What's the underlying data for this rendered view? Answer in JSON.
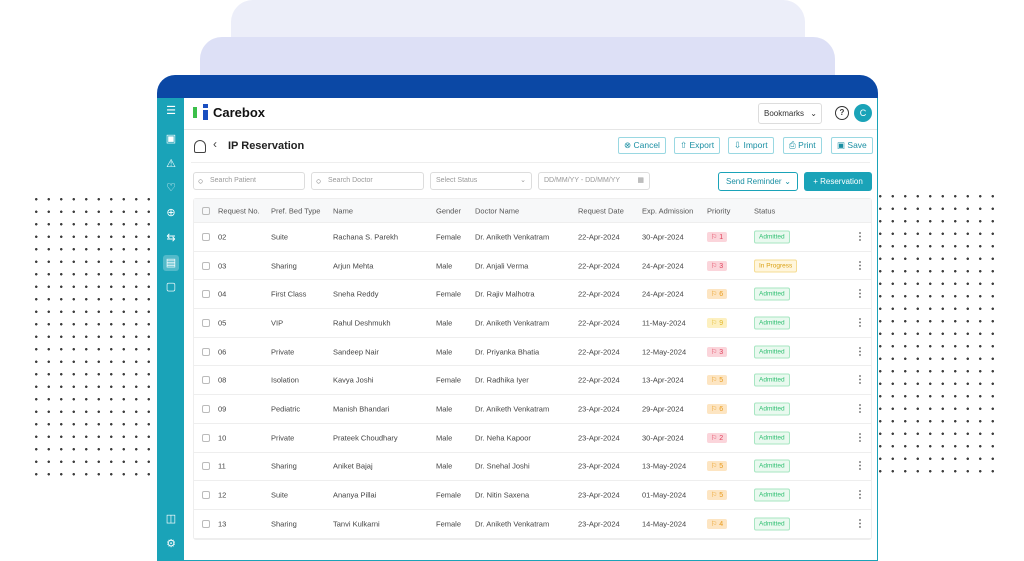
{
  "app": {
    "name": "Carebox",
    "bookmarks": "Bookmarks",
    "help": "?",
    "avatar": "C"
  },
  "page": {
    "title": "IP Reservation",
    "actions": [
      "Cancel",
      "Export",
      "Import",
      "Print",
      "Save"
    ]
  },
  "filters": {
    "search_patient": "Search Patient",
    "search_doctor": "Search Doctor",
    "status": "Select Status",
    "date": "DD/MM/YY - DD/MM/YY",
    "send_reminder": "Send Reminder",
    "add": "+ Reservation"
  },
  "colors": {
    "teal": "#1aa3b8",
    "frame": "#0b48a5",
    "red": "#e0405a",
    "orange": "#f0a020",
    "yellow": "#f2c94c",
    "green": "#2fbf71"
  },
  "table": {
    "headers": [
      "Request No.",
      "Pref. Bed Type",
      "Name",
      "Gender",
      "Doctor Name",
      "Request Date",
      "Exp. Admission",
      "Priority",
      "Status"
    ],
    "rows": [
      [
        "02",
        "Suite",
        "Rachana S. Parekh",
        "Female",
        "Dr. Aniketh Venkatram",
        "22-Apr-2024",
        "30-Apr-2024",
        "1",
        "Admitted",
        "red"
      ],
      [
        "03",
        "Sharing",
        "Arjun Mehta",
        "Male",
        "Dr. Anjali Verma",
        "22-Apr-2024",
        "24-Apr-2024",
        "3",
        "In Progress",
        "red"
      ],
      [
        "04",
        "First Class",
        "Sneha Reddy",
        "Female",
        "Dr. Rajiv Malhotra",
        "22-Apr-2024",
        "24-Apr-2024",
        "6",
        "Admitted",
        "orange"
      ],
      [
        "05",
        "VIP",
        "Rahul Deshmukh",
        "Male",
        "Dr. Aniketh Venkatram",
        "22-Apr-2024",
        "11-May-2024",
        "9",
        "Admitted",
        "yellow"
      ],
      [
        "06",
        "Private",
        "Sandeep Nair",
        "Male",
        "Dr. Priyanka Bhatia",
        "22-Apr-2024",
        "12-May-2024",
        "3",
        "Admitted",
        "red"
      ],
      [
        "08",
        "Isolation",
        "Kavya Joshi",
        "Female",
        "Dr. Radhika Iyer",
        "22-Apr-2024",
        "13-Apr-2024",
        "5",
        "Admitted",
        "orange"
      ],
      [
        "09",
        "Pediatric",
        "Manish Bhandari",
        "Male",
        "Dr. Aniketh Venkatram",
        "23-Apr-2024",
        "29-Apr-2024",
        "6",
        "Admitted",
        "orange"
      ],
      [
        "10",
        "Private",
        "Prateek Choudhary",
        "Male",
        "Dr. Neha Kapoor",
        "23-Apr-2024",
        "30-Apr-2024",
        "2",
        "Admitted",
        "red"
      ],
      [
        "11",
        "Sharing",
        "Aniket Bajaj",
        "Male",
        "Dr. Snehal Joshi",
        "23-Apr-2024",
        "13-May-2024",
        "5",
        "Admitted",
        "orange"
      ],
      [
        "12",
        "Suite",
        "Ananya Pillai",
        "Female",
        "Dr. Nitin Saxena",
        "23-Apr-2024",
        "01-May-2024",
        "5",
        "Admitted",
        "orange"
      ],
      [
        "13",
        "Sharing",
        "Tanvi Kulkarni",
        "Female",
        "Dr. Aniketh Venkatram",
        "23-Apr-2024",
        "14-May-2024",
        "4",
        "Admitted",
        "orange"
      ]
    ]
  }
}
